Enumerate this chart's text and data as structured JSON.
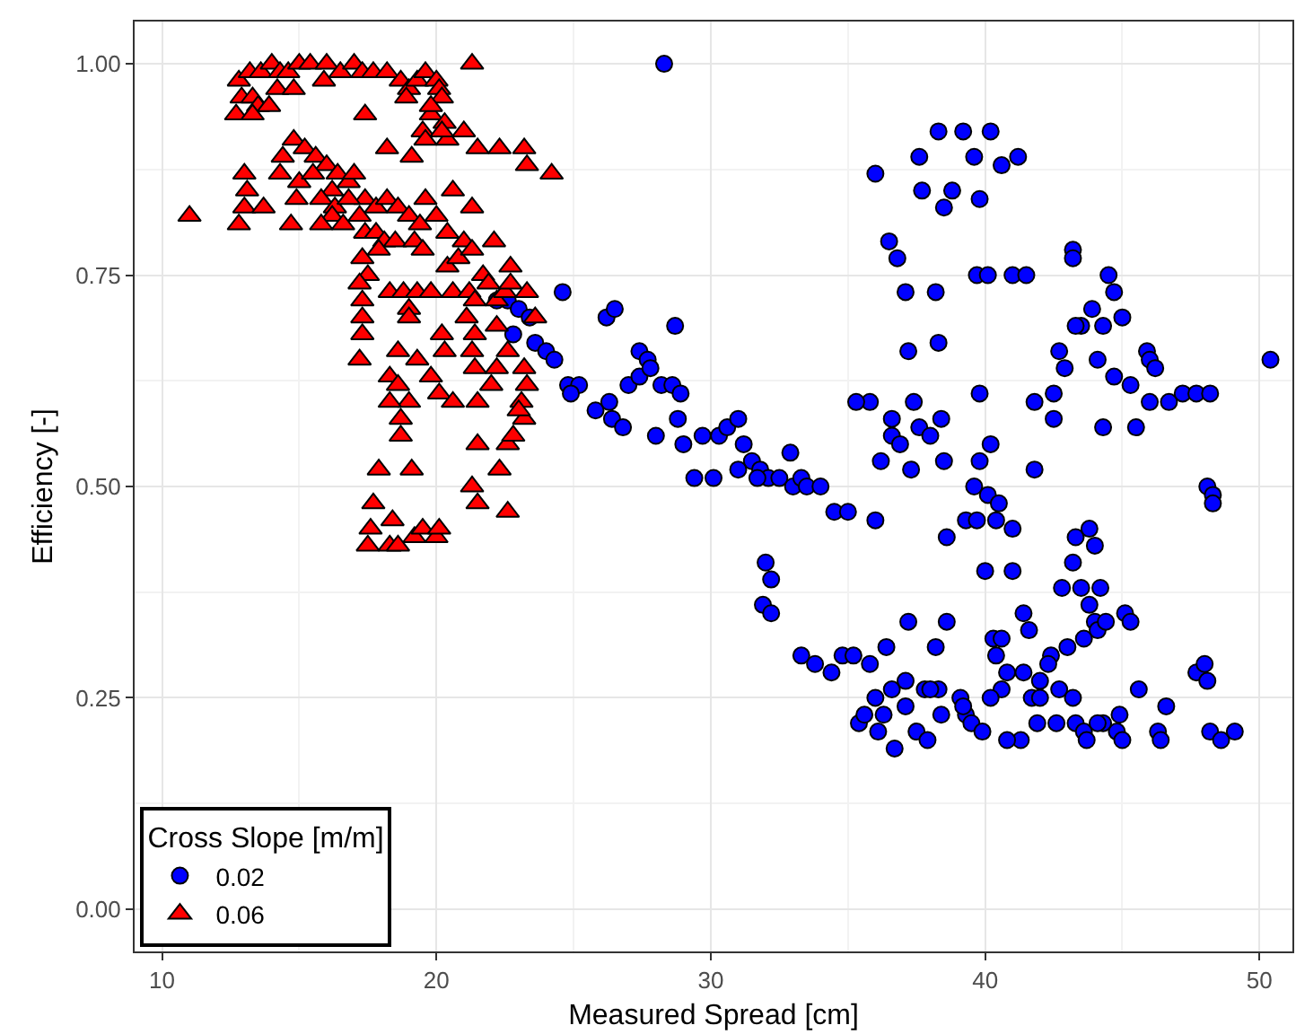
{
  "chart_data": {
    "type": "scatter",
    "xlabel": "Measured Spread [cm]",
    "ylabel": "Efficiency [-]",
    "legend_title": "Cross Slope [m/m]",
    "legend": "bottom left",
    "grid": true,
    "xlim": [
      9,
      51.2
    ],
    "ylim": [
      -0.05,
      1.05
    ],
    "xticks": [
      10,
      20,
      30,
      40,
      50
    ],
    "yticks": [
      {
        "value": 0,
        "label": "0.00"
      },
      {
        "value": 0.25,
        "label": "0.25"
      },
      {
        "value": 0.5,
        "label": "0.50"
      },
      {
        "value": 0.75,
        "label": "0.75"
      },
      {
        "value": 1,
        "label": "1.00"
      }
    ],
    "series": [
      {
        "name": "0.02",
        "color": "#0000ff",
        "marker": "circle",
        "x": [
          22.2,
          22.6,
          23,
          23.4,
          22.8,
          23.6,
          24,
          24.6,
          24.3,
          24.8,
          25.2,
          24.9,
          26.2,
          26.5,
          27.4,
          27.7,
          28.7,
          25.8,
          26.4,
          26.8,
          26.3,
          27,
          27.4,
          27.8,
          28.2,
          28.6,
          28.9,
          28,
          29,
          28.8,
          29.7,
          29.4,
          30.1,
          30.3,
          30.6,
          31,
          31.2,
          31.5,
          31,
          31.8,
          32.1,
          32.5,
          33,
          33.3,
          31.7,
          32.9,
          33.5,
          34,
          34.5,
          35,
          32,
          32.2,
          28.3,
          36,
          36,
          37.6,
          38.3,
          39.2,
          40.2,
          39.6,
          40.6,
          37.7,
          38.8,
          38.5,
          39.8,
          41.2,
          36.5,
          36.8,
          37.1,
          38.2,
          37.2,
          38.3,
          39.7,
          40.1,
          41,
          41.5,
          43.2,
          43.2,
          43.5,
          43.9,
          44.5,
          44.7,
          45,
          43.3,
          44.3,
          42.7,
          42.9,
          44.1,
          44.7,
          45.3,
          45.9,
          46,
          46.2,
          45.5,
          46,
          47.2,
          47.7,
          48.2,
          46.7,
          50.4,
          42.5,
          41.8,
          42.5,
          44.3,
          35.8,
          35.3,
          36.6,
          37.4,
          38.4,
          39.8,
          36.6,
          37.6,
          38,
          36.2,
          36.9,
          37.3,
          38.5,
          39.8,
          40.2,
          39.6,
          40.1,
          40.5,
          41.8,
          39.3,
          39.7,
          40.4,
          41,
          38.6,
          41,
          40,
          43.3,
          43.8,
          44,
          43.2,
          42.8,
          43.5,
          44.2,
          43.8,
          34.8,
          35.2,
          35.8,
          36.4,
          36,
          36.3,
          36.1,
          35.4,
          35.6,
          33.3,
          33.8,
          34.4,
          37.2,
          38.6,
          38.2,
          37.8,
          38.3,
          39.1,
          38.4,
          39.3,
          40.4,
          40.3,
          40.6,
          41.6,
          42.4,
          42.3,
          43,
          43.6,
          44,
          44.1,
          45.1,
          44.4,
          45.3,
          40.8,
          41.4,
          41.7,
          42,
          42.7,
          43.2,
          44.3,
          44.9,
          45.6,
          46.6,
          46.3,
          46.4,
          47.7,
          48,
          48.1,
          48.2,
          48.6,
          49.1,
          37.1,
          37.5,
          37.9,
          39.5,
          39.9,
          40.6,
          41.3,
          41.9,
          42.6,
          43.3,
          43.6,
          44.1,
          36.7,
          40.8,
          40.2,
          39.2,
          36.6,
          37.1,
          38,
          44.8,
          48.1,
          48.3,
          48.3,
          31.9,
          32.2,
          41.4,
          42,
          43.7,
          45
        ],
        "values": [
          0.72,
          0.72,
          0.71,
          0.7,
          0.68,
          0.67,
          0.66,
          0.73,
          0.65,
          0.62,
          0.62,
          0.61,
          0.7,
          0.71,
          0.66,
          0.65,
          0.69,
          0.59,
          0.58,
          0.57,
          0.6,
          0.62,
          0.63,
          0.64,
          0.62,
          0.62,
          0.61,
          0.56,
          0.55,
          0.58,
          0.56,
          0.51,
          0.51,
          0.56,
          0.57,
          0.58,
          0.55,
          0.53,
          0.52,
          0.52,
          0.51,
          0.51,
          0.5,
          0.51,
          0.51,
          0.54,
          0.5,
          0.5,
          0.47,
          0.47,
          0.41,
          0.39,
          1.0,
          0.46,
          0.87,
          0.89,
          0.92,
          0.92,
          0.92,
          0.89,
          0.88,
          0.85,
          0.85,
          0.83,
          0.84,
          0.89,
          0.79,
          0.77,
          0.73,
          0.73,
          0.66,
          0.67,
          0.75,
          0.75,
          0.75,
          0.75,
          0.78,
          0.77,
          0.69,
          0.71,
          0.75,
          0.73,
          0.7,
          0.69,
          0.69,
          0.66,
          0.64,
          0.65,
          0.63,
          0.62,
          0.66,
          0.65,
          0.64,
          0.57,
          0.6,
          0.61,
          0.61,
          0.61,
          0.6,
          0.65,
          0.61,
          0.6,
          0.58,
          0.57,
          0.6,
          0.6,
          0.58,
          0.6,
          0.58,
          0.61,
          0.56,
          0.57,
          0.56,
          0.53,
          0.55,
          0.52,
          0.53,
          0.53,
          0.55,
          0.5,
          0.49,
          0.48,
          0.52,
          0.46,
          0.46,
          0.46,
          0.45,
          0.44,
          0.4,
          0.4,
          0.44,
          0.45,
          0.43,
          0.41,
          0.38,
          0.38,
          0.38,
          0.36,
          0.3,
          0.3,
          0.29,
          0.31,
          0.25,
          0.23,
          0.21,
          0.22,
          0.23,
          0.3,
          0.29,
          0.28,
          0.34,
          0.34,
          0.31,
          0.26,
          0.26,
          0.25,
          0.23,
          0.23,
          0.3,
          0.32,
          0.32,
          0.33,
          0.3,
          0.29,
          0.31,
          0.32,
          0.34,
          0.33,
          0.35,
          0.34,
          0.34,
          0.28,
          0.28,
          0.25,
          0.27,
          0.26,
          0.25,
          0.22,
          0.23,
          0.26,
          0.24,
          0.21,
          0.2,
          0.28,
          0.29,
          0.27,
          0.21,
          0.2,
          0.21,
          0.24,
          0.21,
          0.2,
          0.22,
          0.21,
          0.26,
          0.2,
          0.22,
          0.22,
          0.22,
          0.21,
          0.22,
          0.19,
          0.2,
          0.25,
          0.24,
          0.26,
          0.27,
          0.26,
          0.21,
          0.5,
          0.49,
          0.48,
          0.36,
          0.35,
          0.35,
          0.25,
          0.2,
          0.2
        ]
      },
      {
        "name": "0.06",
        "color": "#ff0000",
        "marker": "triangle",
        "x": [
          12.8,
          13.2,
          13.6,
          14,
          14.3,
          14.6,
          15,
          15.4,
          16,
          16.5,
          17,
          17.3,
          17.7,
          18.2,
          18.7,
          19,
          19.3,
          19.6,
          20,
          20.1,
          21.3,
          12.9,
          13.3,
          13.5,
          13.9,
          14.2,
          12.7,
          13.3,
          14.8,
          15.9,
          18.9,
          19.8,
          19.5,
          20.2,
          20.3,
          20.4,
          21,
          21.5,
          22.3,
          23.2,
          23.3,
          24.2,
          19.8,
          19.6,
          20.2,
          17.4,
          18.2,
          19.1,
          14.8,
          15.2,
          14.4,
          15.6,
          16,
          16.4,
          16.8,
          15,
          15.5,
          16.2,
          13,
          13.1,
          13,
          14.3,
          14.9,
          15.8,
          16.3,
          17,
          17.4,
          17.8,
          18.2,
          18.6,
          19,
          19.4,
          19.6,
          20,
          20.4,
          21,
          21.3,
          20.6,
          16.8,
          16.2,
          17.2,
          11,
          12.8,
          13.7,
          14.7,
          15.8,
          16.6,
          17.4,
          17.8,
          18.1,
          18.5,
          17.3,
          17.5,
          17.9,
          19.2,
          19.5,
          20.4,
          20.8,
          21.3,
          21.7,
          22.1,
          22.7,
          23.6,
          17.2,
          17.3,
          18.3,
          18.8,
          19.3,
          19.8,
          20.6,
          21.2,
          21.4,
          21.9,
          22.2,
          22.5,
          17.3,
          17.3,
          19,
          19,
          20.2,
          21.1,
          21.4,
          22.2,
          22.7,
          23.3,
          17.2,
          18.6,
          19.3,
          20.3,
          21.3,
          21.4,
          22.6,
          22.2,
          23.2,
          23.3,
          23.1,
          23.2,
          18.3,
          18.6,
          19,
          19.8,
          20.1,
          20.6,
          21.5,
          22,
          18.7,
          18.7,
          18.3,
          22.6,
          22.3,
          17.7,
          17.6,
          18.4,
          19.2,
          19.5,
          17.9,
          19.1,
          21.3,
          21.5,
          22.6,
          18.3,
          18.6,
          20,
          20.1,
          17.5,
          21.5,
          23,
          22.8
        ],
        "values": [
          0.98,
          0.99,
          0.99,
          1.0,
          0.99,
          0.99,
          1.0,
          1.0,
          1.0,
          0.99,
          1.0,
          0.99,
          0.99,
          0.99,
          0.98,
          0.97,
          0.98,
          0.99,
          0.98,
          0.97,
          1.0,
          0.96,
          0.96,
          0.95,
          0.95,
          0.97,
          0.94,
          0.94,
          0.97,
          0.98,
          0.96,
          0.94,
          0.92,
          0.96,
          0.93,
          0.91,
          0.92,
          0.9,
          0.9,
          0.9,
          0.88,
          0.87,
          0.95,
          0.91,
          0.92,
          0.94,
          0.9,
          0.89,
          0.91,
          0.9,
          0.89,
          0.89,
          0.88,
          0.87,
          0.86,
          0.86,
          0.87,
          0.85,
          0.87,
          0.85,
          0.83,
          0.87,
          0.84,
          0.84,
          0.83,
          0.87,
          0.84,
          0.83,
          0.84,
          0.83,
          0.82,
          0.81,
          0.84,
          0.82,
          0.8,
          0.79,
          0.83,
          0.85,
          0.84,
          0.82,
          0.82,
          0.82,
          0.81,
          0.83,
          0.81,
          0.81,
          0.81,
          0.8,
          0.8,
          0.79,
          0.79,
          0.77,
          0.75,
          0.78,
          0.79,
          0.78,
          0.76,
          0.77,
          0.78,
          0.75,
          0.79,
          0.76,
          0.7,
          0.74,
          0.72,
          0.73,
          0.73,
          0.73,
          0.73,
          0.73,
          0.73,
          0.72,
          0.74,
          0.72,
          0.73,
          0.7,
          0.68,
          0.71,
          0.7,
          0.68,
          0.7,
          0.68,
          0.69,
          0.74,
          0.73,
          0.65,
          0.66,
          0.65,
          0.66,
          0.66,
          0.64,
          0.66,
          0.64,
          0.64,
          0.62,
          0.6,
          0.58,
          0.63,
          0.62,
          0.6,
          0.63,
          0.61,
          0.6,
          0.6,
          0.62,
          0.58,
          0.56,
          0.6,
          0.55,
          0.52,
          0.48,
          0.45,
          0.46,
          0.44,
          0.45,
          0.52,
          0.52,
          0.5,
          0.48,
          0.47,
          0.43,
          0.43,
          0.44,
          0.45,
          0.43,
          0.55,
          0.59,
          0.56
        ]
      }
    ]
  }
}
